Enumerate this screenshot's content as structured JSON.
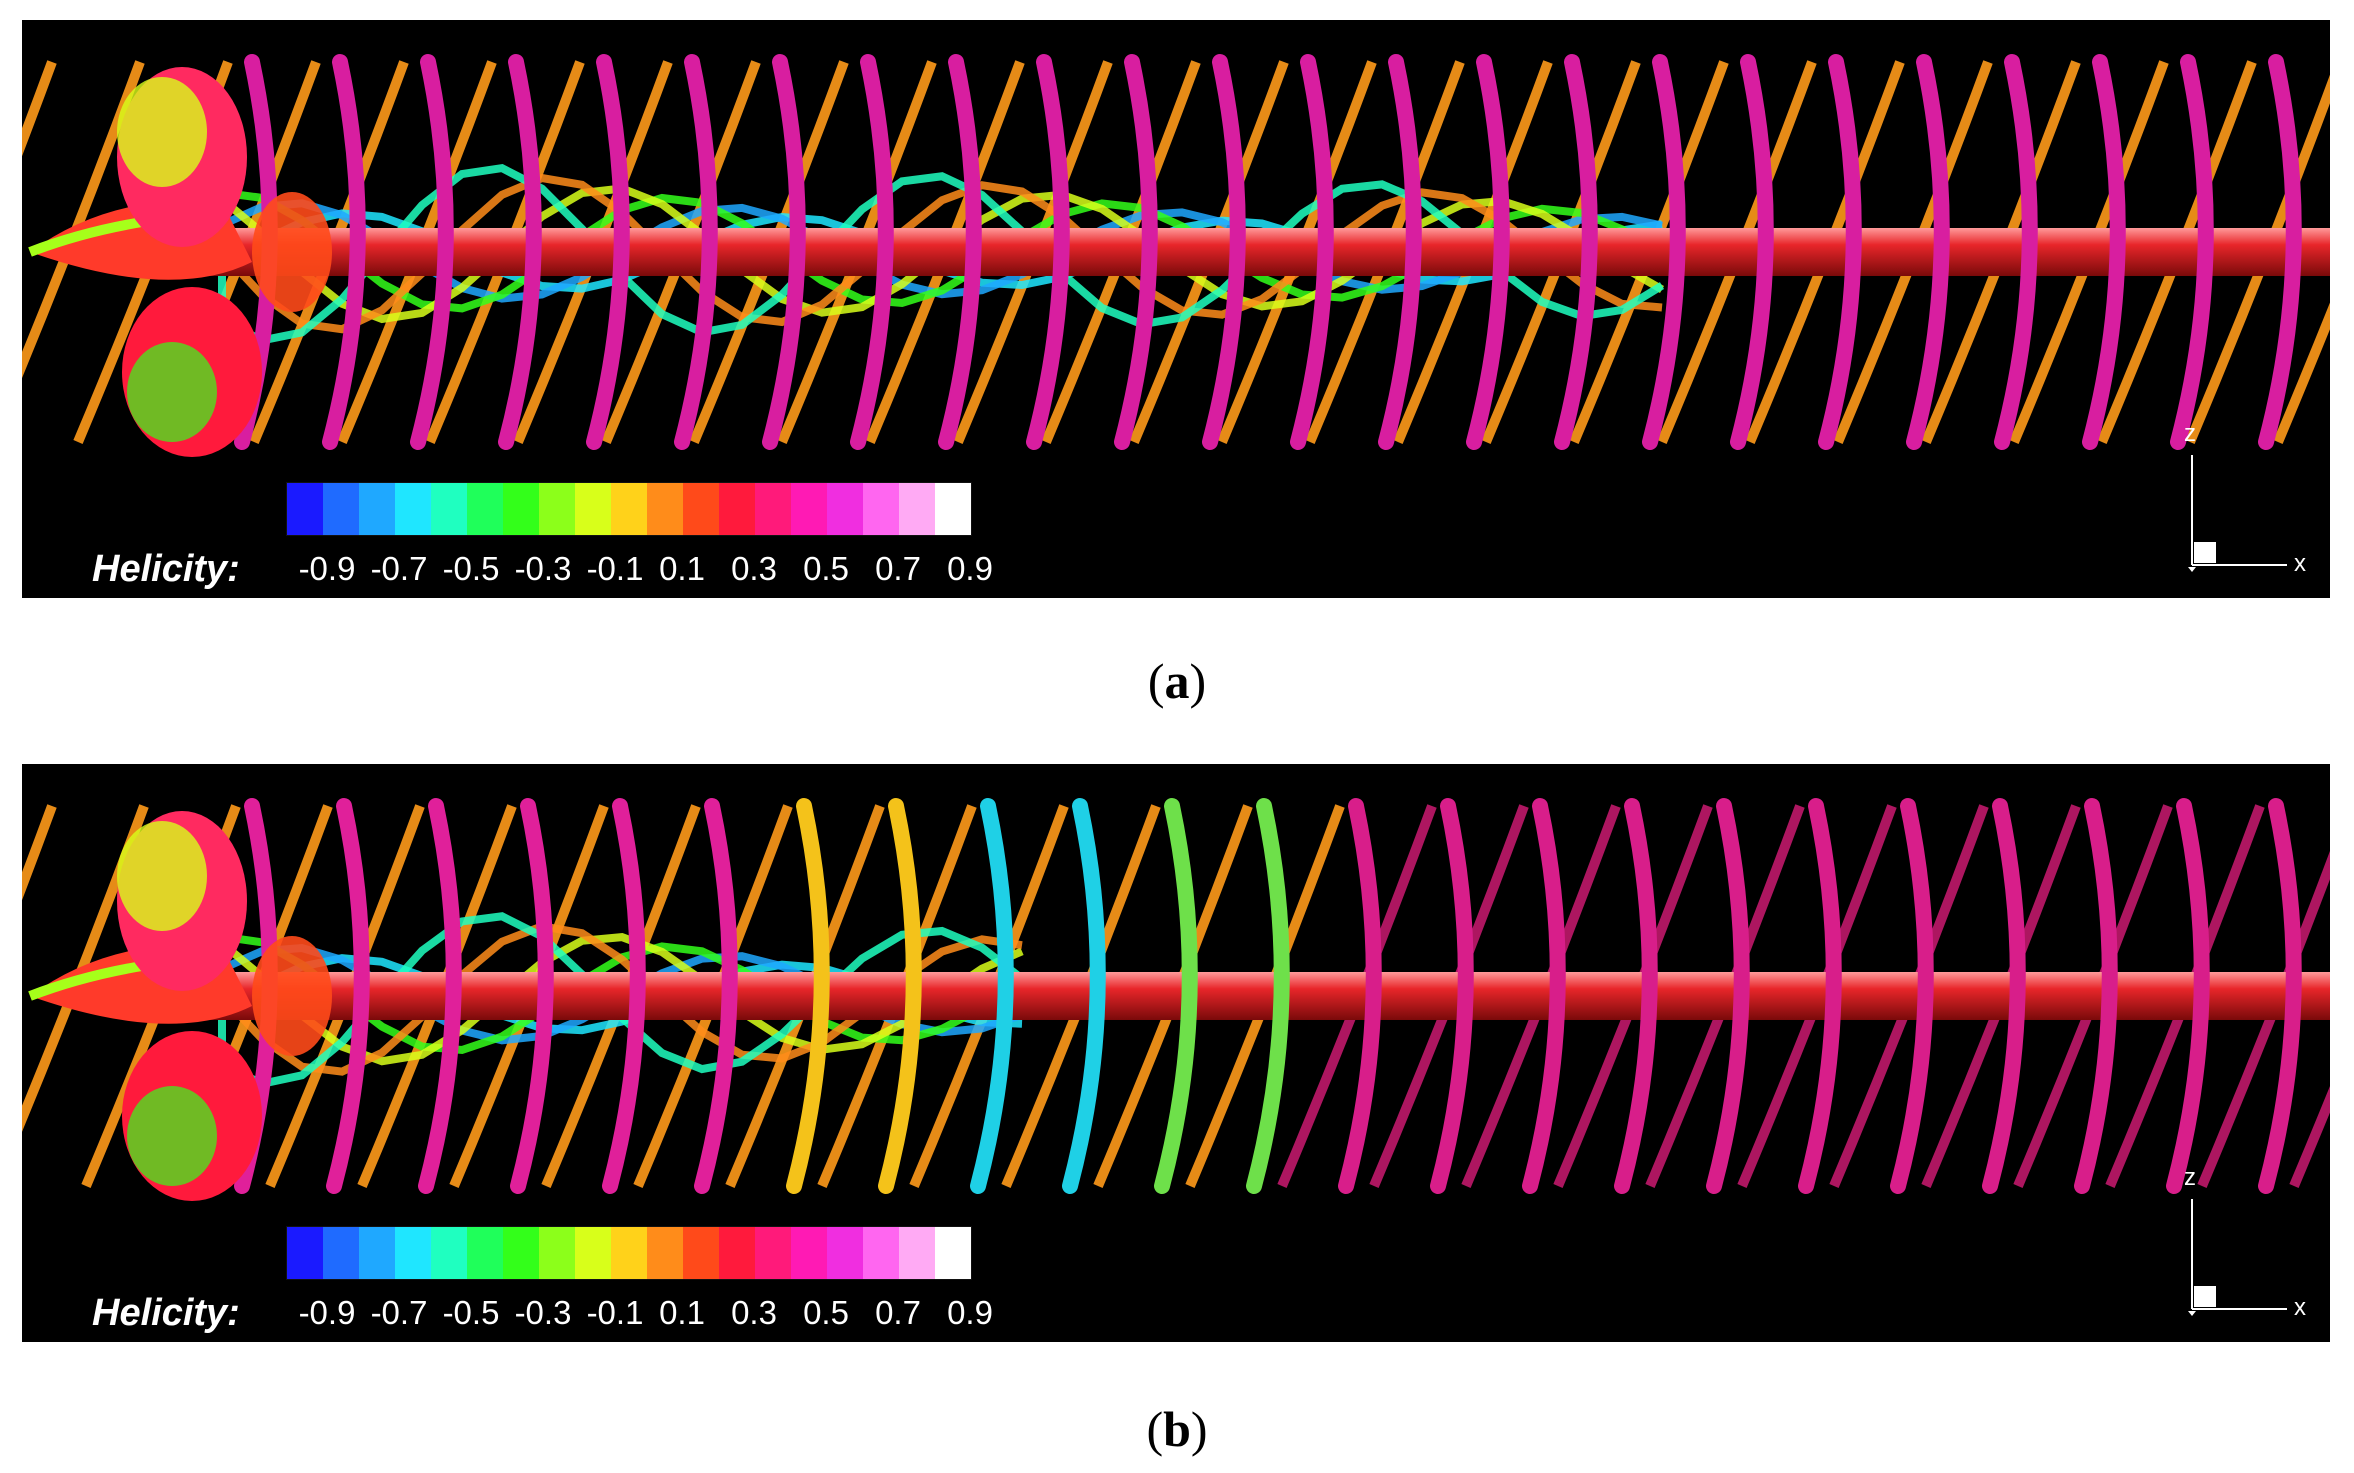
{
  "panels": [
    {
      "id": "a",
      "legend": {
        "title": "Helicity:",
        "ticks": [
          "-0.9",
          "-0.7",
          "-0.5",
          "-0.3",
          "-0.1",
          "0.1",
          "0.3",
          "0.5",
          "0.7",
          "0.9"
        ]
      },
      "axes": {
        "vertical": "z",
        "horizontal": "x"
      },
      "caption": {
        "open": "(",
        "label": "a",
        "close": ")"
      }
    },
    {
      "id": "b",
      "legend": {
        "title": "Helicity:",
        "ticks": [
          "-0.9",
          "-0.7",
          "-0.5",
          "-0.3",
          "-0.1",
          "0.1",
          "0.3",
          "0.5",
          "0.7",
          "0.9"
        ]
      },
      "axes": {
        "vertical": "z",
        "horizontal": "x"
      },
      "caption": {
        "open": "(",
        "label": "b",
        "close": ")"
      }
    }
  ],
  "colormap": [
    "#1a1aff",
    "#1f6bff",
    "#1fa8ff",
    "#1fe6ff",
    "#1fffc0",
    "#1fff5a",
    "#33ff1a",
    "#8cff1a",
    "#d8ff1a",
    "#ffd21a",
    "#ff8c1a",
    "#ff4a1a",
    "#ff1a3c",
    "#ff1a7a",
    "#ff1ab4",
    "#f02ee0",
    "#ff66f0",
    "#ffaaf4",
    "#ffffff"
  ],
  "colors": {
    "hub_vortex": "#e8262a",
    "tip_vortex_far": "#d81ea0",
    "tip_vortex_back": "#ff9a1a",
    "background": "#000000"
  }
}
